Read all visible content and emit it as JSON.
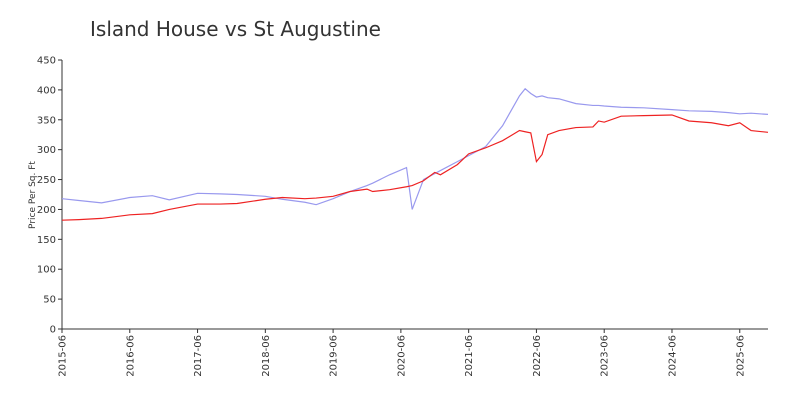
{
  "chart_data": {
    "type": "line",
    "title": "Island House vs St Augustine",
    "ylabel": "Price Per Sq. Ft",
    "x": [
      "2015-06",
      "2015-09",
      "2016-01",
      "2016-06",
      "2016-10",
      "2017-01",
      "2017-06",
      "2017-10",
      "2018-01",
      "2018-06",
      "2018-09",
      "2019-01",
      "2019-03",
      "2019-06",
      "2019-09",
      "2019-12",
      "2020-01",
      "2020-04",
      "2020-07",
      "2020-08",
      "2020-10",
      "2020-12",
      "2021-01",
      "2021-04",
      "2021-06",
      "2021-09",
      "2021-12",
      "2022-03",
      "2022-04",
      "2022-05",
      "2022-06",
      "2022-07",
      "2022-08",
      "2022-10",
      "2023-01",
      "2023-04",
      "2023-05",
      "2023-06",
      "2023-09",
      "2024-01",
      "2024-06",
      "2024-09",
      "2025-01",
      "2025-04",
      "2025-06",
      "2025-08",
      "2025-11"
    ],
    "series": [
      {
        "color": "#9999ee",
        "values": [
          218,
          215,
          211,
          220,
          223,
          216,
          227,
          226,
          225,
          222,
          217,
          212,
          208,
          218,
          230,
          240,
          244,
          258,
          270,
          200,
          250,
          260,
          265,
          280,
          290,
          305,
          340,
          390,
          402,
          394,
          388,
          390,
          387,
          385,
          377,
          374,
          374,
          373,
          371,
          370,
          367,
          365,
          364,
          362,
          360,
          361,
          359
        ]
      },
      {
        "color": "#ee2222",
        "values": [
          182,
          183,
          185,
          191,
          193,
          200,
          209,
          209,
          210,
          217,
          220,
          218,
          219,
          222,
          230,
          234,
          230,
          233,
          238,
          240,
          248,
          262,
          258,
          275,
          293,
          303,
          315,
          332,
          330,
          328,
          280,
          292,
          325,
          332,
          337,
          338,
          348,
          346,
          356,
          357,
          358,
          348,
          345,
          340,
          345,
          332,
          329
        ]
      }
    ],
    "xlim": [
      "2015-06",
      "2025-11"
    ],
    "xticks": [
      "2015-06",
      "2016-06",
      "2017-06",
      "2018-06",
      "2019-06",
      "2020-06",
      "2021-06",
      "2022-06",
      "2023-06",
      "2024-06",
      "2025-06"
    ],
    "ylim": [
      0,
      450
    ],
    "yticks": [
      0,
      50,
      100,
      150,
      200,
      250,
      300,
      350,
      400,
      450
    ],
    "grid": false
  }
}
